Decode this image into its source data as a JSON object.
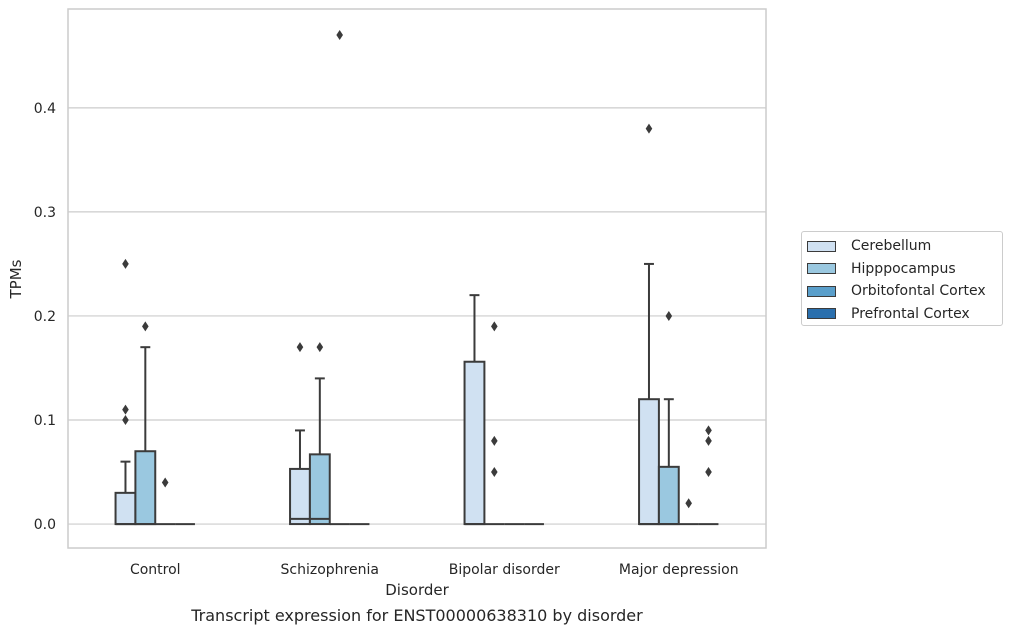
{
  "caption": "Transcript expression for ENST00000638310 by disorder",
  "chart_data": {
    "type": "box",
    "xlabel": "Disorder",
    "ylabel": "TPMs",
    "ylim": [
      -0.023,
      0.495
    ],
    "yticks": [
      0.0,
      0.1,
      0.2,
      0.3,
      0.4
    ],
    "ytick_labels": [
      "0.0",
      "0.1",
      "0.2",
      "0.3",
      "0.4"
    ],
    "grid": "horizontal",
    "legend_position": "right",
    "categories": [
      "Control",
      "Schizophrenia",
      "Bipolar disorder",
      "Major depression"
    ],
    "series": [
      {
        "name": "Cerebellum",
        "color": "#d0e1f2",
        "boxes": [
          {
            "q1": 0.0,
            "median": 0.0,
            "q3": 0.03,
            "whisker_low": 0.0,
            "whisker_high": 0.06,
            "outliers": [
              0.25,
              0.11,
              0.1
            ]
          },
          {
            "q1": 0.0,
            "median": 0.005,
            "q3": 0.053,
            "whisker_low": 0.0,
            "whisker_high": 0.09,
            "outliers": [
              0.17
            ]
          },
          {
            "q1": 0.0,
            "median": 0.0,
            "q3": 0.156,
            "whisker_low": 0.0,
            "whisker_high": 0.22,
            "outliers": []
          },
          {
            "q1": 0.0,
            "median": 0.0,
            "q3": 0.12,
            "whisker_low": 0.0,
            "whisker_high": 0.25,
            "outliers": [
              0.38
            ]
          }
        ]
      },
      {
        "name": "Hipppocampus",
        "color": "#9ac8e0",
        "boxes": [
          {
            "q1": 0.0,
            "median": 0.0,
            "q3": 0.07,
            "whisker_low": 0.0,
            "whisker_high": 0.17,
            "outliers": [
              0.19
            ]
          },
          {
            "q1": 0.0,
            "median": 0.005,
            "q3": 0.067,
            "whisker_low": 0.0,
            "whisker_high": 0.14,
            "outliers": [
              0.17
            ]
          },
          {
            "q1": 0.0,
            "median": 0.0,
            "q3": 0.0,
            "whisker_low": 0.0,
            "whisker_high": 0.0,
            "outliers": [
              0.19,
              0.08,
              0.05
            ]
          },
          {
            "q1": 0.0,
            "median": 0.0,
            "q3": 0.055,
            "whisker_low": 0.0,
            "whisker_high": 0.12,
            "outliers": [
              0.2
            ]
          }
        ]
      },
      {
        "name": "Orbitofontal Cortex",
        "color": "#5a9fcb",
        "boxes": [
          {
            "q1": 0.0,
            "median": 0.0,
            "q3": 0.0,
            "whisker_low": 0.0,
            "whisker_high": 0.0,
            "outliers": [
              0.04
            ]
          },
          {
            "q1": 0.0,
            "median": 0.0,
            "q3": 0.0,
            "whisker_low": 0.0,
            "whisker_high": 0.0,
            "outliers": [
              0.47
            ]
          },
          {
            "q1": 0.0,
            "median": 0.0,
            "q3": 0.0,
            "whisker_low": 0.0,
            "whisker_high": 0.0,
            "outliers": []
          },
          {
            "q1": 0.0,
            "median": 0.0,
            "q3": 0.0,
            "whisker_low": 0.0,
            "whisker_high": 0.0,
            "outliers": [
              0.02
            ]
          }
        ]
      },
      {
        "name": "Prefrontal Cortex",
        "color": "#2a6fad",
        "boxes": [
          {
            "q1": 0.0,
            "median": 0.0,
            "q3": 0.0,
            "whisker_low": 0.0,
            "whisker_high": 0.0,
            "outliers": []
          },
          {
            "q1": 0.0,
            "median": 0.0,
            "q3": 0.0,
            "whisker_low": 0.0,
            "whisker_high": 0.0,
            "outliers": []
          },
          {
            "q1": 0.0,
            "median": 0.0,
            "q3": 0.0,
            "whisker_low": 0.0,
            "whisker_high": 0.0,
            "outliers": []
          },
          {
            "q1": 0.0,
            "median": 0.0,
            "q3": 0.0,
            "whisker_low": 0.0,
            "whisker_high": 0.0,
            "outliers": [
              0.09,
              0.08,
              0.05
            ]
          }
        ]
      }
    ]
  }
}
